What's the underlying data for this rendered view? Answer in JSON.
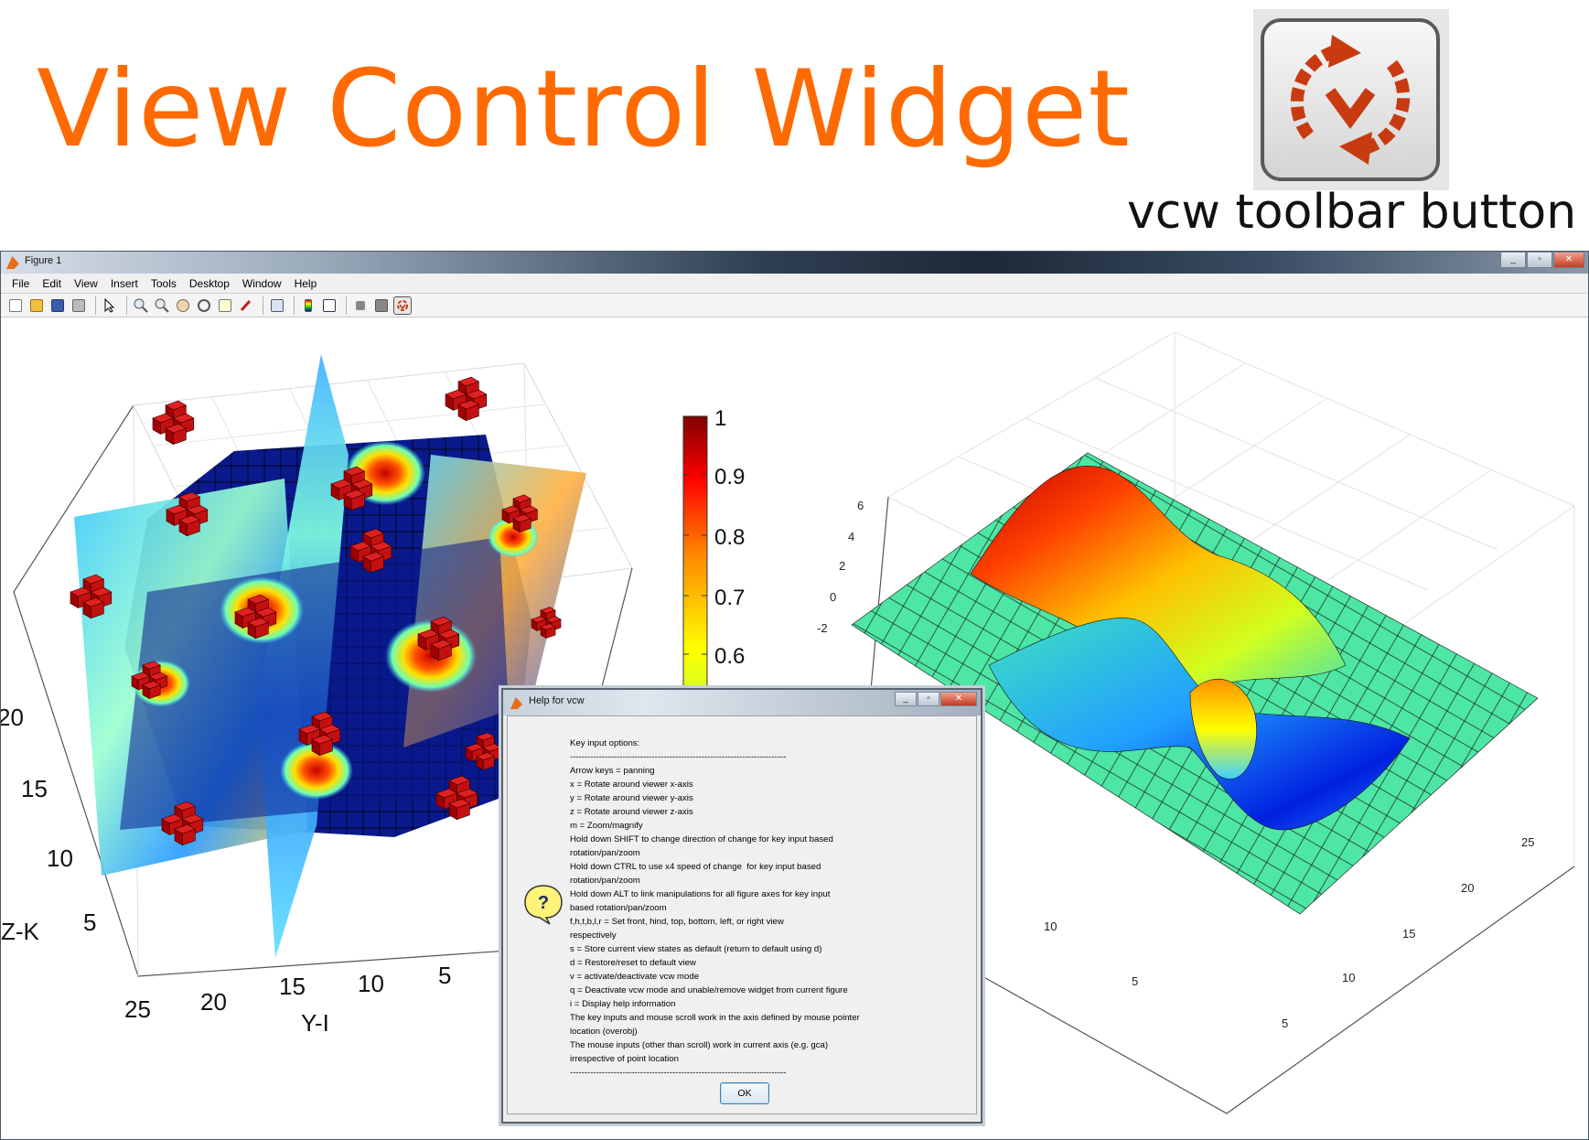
{
  "banner": {
    "title": "View Control Widget",
    "icon_caption": "vcw toolbar button",
    "icon": "vcw-rotate-icon",
    "accent_color": "#ff6a00"
  },
  "window": {
    "title": "Figure 1",
    "controls": [
      "_",
      "▫",
      "✕"
    ]
  },
  "menu": [
    "File",
    "Edit",
    "View",
    "Insert",
    "Tools",
    "Desktop",
    "Window",
    "Help"
  ],
  "toolbar": {
    "buttons": [
      "new-figure-icon",
      "open-file-icon",
      "save-icon",
      "print-icon",
      "pointer-icon",
      "zoom-in-icon",
      "zoom-out-icon",
      "pan-icon",
      "rotate-3d-icon",
      "data-cursor-icon",
      "brush-icon",
      "link-plot-icon",
      "colorbar-icon",
      "legend-icon",
      "hide-plot-tools-icon",
      "show-plot-tools-icon",
      "vcw-rotate-icon"
    ]
  },
  "left_plot": {
    "y_label": "Y-I",
    "z_label": "Z-K",
    "y_ticks": [
      "25",
      "20",
      "15",
      "10",
      "5"
    ],
    "z_ticks": [
      "20",
      "15",
      "10",
      "5"
    ]
  },
  "colorbar": {
    "ticks": [
      "1",
      "0.9",
      "0.8",
      "0.7",
      "0.6"
    ],
    "colormap": "jet"
  },
  "right_plot": {
    "z_ticks": [
      "6",
      "4",
      "2",
      "0",
      "-2"
    ],
    "x_ticks": [
      "5",
      "10",
      "15",
      "20",
      "25"
    ],
    "y_ticks": [
      "5",
      "10"
    ]
  },
  "dialog": {
    "title": "Help for vcw",
    "controls": [
      "_",
      "▫",
      "✕"
    ],
    "icon": "question-icon",
    "lines": [
      "Key input options:",
      "--------------------------------------------------------------------------",
      "Arrow keys = panning",
      "x = Rotate around viewer x-axis",
      "y = Rotate around viewer y-axis",
      "z = Rotate around viewer z-axis",
      "m = Zoom/magnify",
      "Hold down SHIFT to change direction of change for key input based",
      "rotation/pan/zoom",
      "Hold down CTRL to use x4 speed of change  for key input based",
      "rotation/pan/zoom",
      "Hold down ALT to link manipulations for all figure axes for key input",
      "based rotation/pan/zoom",
      "f,h,t,b,l,r = Set front, hind, top, bottom, left, or right view",
      "respectively",
      "s = Store current view states as default (return to default using d)",
      "d = Restore/reset to default view",
      "v = activate/deactivate vcw mode",
      "q = Deactivate vcw mode and unable/remove widget from current figure",
      "i = Display help information",
      "The key inputs and mouse scroll work in the axis defined by mouse pointer",
      "location (overobj)",
      "The mouse inputs (other than scroll) work in current axis (e.g. gca)",
      "irrespective of point location",
      "--------------------------------------------------------------------------"
    ],
    "ok_label": "OK"
  }
}
